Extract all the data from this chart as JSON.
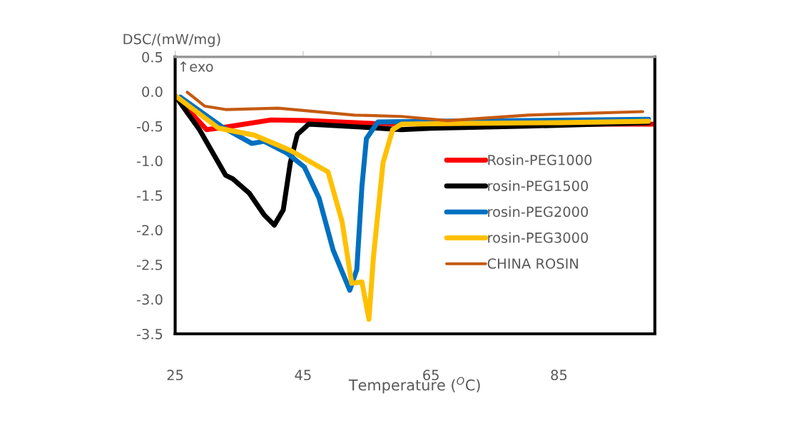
{
  "chart_data": {
    "type": "line",
    "xlabel": "Temperature ($^{O}$C)",
    "ylabel": "DSC/(mW/mg)",
    "annotations": [
      "↑exo"
    ],
    "xlim": [
      25,
      100
    ],
    "xticks": [
      25,
      45,
      65,
      85
    ],
    "ylim": [
      -3.5,
      0.5
    ],
    "yticks": [
      0.5,
      {
        "value": 0,
        "label": "0.0"
      },
      -0.5,
      {
        "value": -1,
        "label": "-1.0"
      },
      -1.5,
      {
        "value": -2,
        "label": "-2.0"
      },
      -2.5,
      {
        "value": -3,
        "label": "-3.0"
      },
      -3.5
    ],
    "grid": false,
    "legend": "right",
    "marker": "none",
    "line_style": "solid",
    "series": [
      {
        "name": "Rosin-PEG1000",
        "color": "#ff0000",
        "x": [
          25,
          29.9,
          32.5,
          40,
          45.6,
          55.9,
          65,
          99.6
        ],
        "values": [
          -0.06,
          -0.55,
          -0.52,
          -0.41,
          -0.42,
          -0.46,
          -0.47,
          -0.47
        ]
      },
      {
        "name": "rosin-PEG1500",
        "color": "#000000",
        "x": [
          25,
          28.8,
          32.9,
          34,
          36.6,
          38.9,
          40.5,
          41.9,
          43,
          44.1,
          45.9,
          55.3,
          60.4,
          65,
          80,
          99
        ],
        "values": [
          -0.06,
          -0.55,
          -1.21,
          -1.26,
          -1.47,
          -1.78,
          -1.93,
          -1.71,
          -1.03,
          -0.62,
          -0.47,
          -0.52,
          -0.55,
          -0.53,
          -0.5,
          -0.45
        ]
      },
      {
        "name": "rosin-PEG2000",
        "color": "#0070c0",
        "x": [
          25.8,
          32.5,
          37,
          38.9,
          42.5,
          45.2,
          47.5,
          49.7,
          52.3,
          53.4,
          54.2,
          54.9,
          56.7,
          65,
          80,
          99
        ],
        "values": [
          -0.08,
          -0.52,
          -0.75,
          -0.72,
          -0.89,
          -1.09,
          -1.54,
          -2.29,
          -2.87,
          -2.57,
          -1.37,
          -0.68,
          -0.44,
          -0.43,
          -0.42,
          -0.4
        ]
      },
      {
        "name": "rosin-PEG3000",
        "color": "#ffc000",
        "x": [
          25,
          31.8,
          37.4,
          43,
          48.9,
          51.1,
          52.6,
          54.2,
          55.3,
          56,
          57.5,
          59,
          60.4,
          70,
          85,
          99
        ],
        "values": [
          -0.06,
          -0.53,
          -0.63,
          -0.85,
          -1.16,
          -1.88,
          -2.77,
          -2.75,
          -3.29,
          -2.39,
          -1.03,
          -0.55,
          -0.47,
          -0.46,
          -0.45,
          -0.43
        ]
      },
      {
        "name": "CHINA ROSIN",
        "color": "#c55a11",
        "x": [
          26.9,
          29.6,
          32.9,
          41.1,
          53,
          60.4,
          67.6,
          80.2,
          98.1
        ],
        "values": [
          -0.01,
          -0.21,
          -0.26,
          -0.24,
          -0.34,
          -0.36,
          -0.42,
          -0.34,
          -0.29
        ]
      }
    ]
  }
}
